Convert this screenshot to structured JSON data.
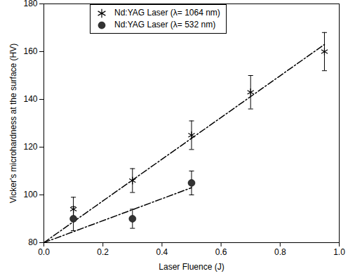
{
  "chart_data": {
    "type": "scatter",
    "x_label": "Laser Fluence (J)",
    "y_label": "Vicker's microhardness at the surface (HV)",
    "xlim": [
      0,
      1
    ],
    "xticks": [
      {
        "value": 0,
        "label": "0.0"
      },
      {
        "value": 0.2,
        "label": "0.2"
      },
      {
        "value": 0.4,
        "label": "0.4"
      },
      {
        "value": 0.6,
        "label": "0.6"
      },
      {
        "value": 0.8,
        "label": "0.8"
      },
      {
        "value": 1,
        "label": "1.0"
      }
    ],
    "ylim": [
      80,
      180
    ],
    "yticks": [
      80,
      100,
      120,
      140,
      160,
      180
    ],
    "grid": false,
    "legend": "upper left",
    "series": [
      {
        "name": "Nd:YAG Laser (λ= 1064 nm)",
        "color": "#000000",
        "marker": "asterisk",
        "x": [
          0.1,
          0.3,
          0.5,
          0.7,
          0.95
        ],
        "values": [
          94,
          106,
          125,
          143,
          160
        ],
        "errors": [
          5,
          5,
          6,
          7,
          8
        ],
        "fit": {
          "x": [
            0,
            0.95
          ],
          "values": [
            80,
            163
          ],
          "line_style": "dashdot"
        }
      },
      {
        "name": "Nd:YAG Laser (λ= 532 nm)",
        "color": "#333333",
        "marker": "circle",
        "x": [
          0.1,
          0.3,
          0.5
        ],
        "values": [
          90,
          90,
          105
        ],
        "errors": [
          5,
          4,
          5
        ],
        "fit": {
          "x": [
            0,
            0.5
          ],
          "values": [
            80,
            103
          ],
          "line_style": "dashdot"
        }
      }
    ]
  }
}
